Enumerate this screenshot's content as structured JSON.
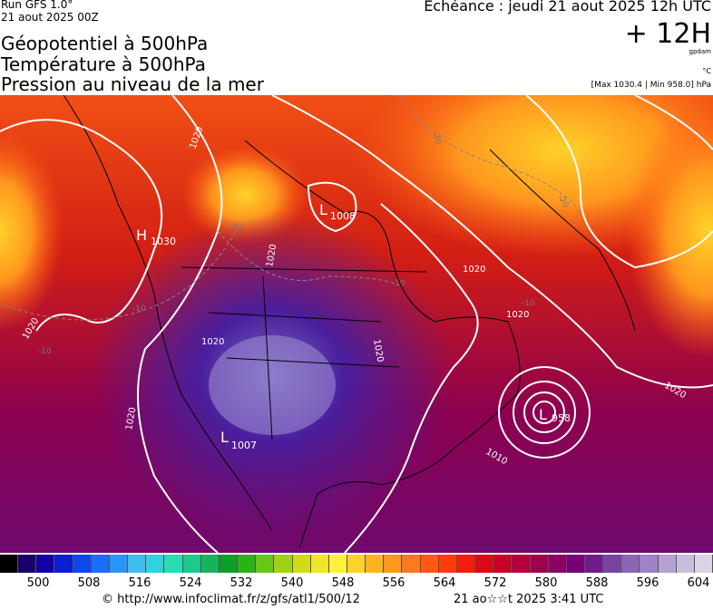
{
  "header": {
    "run": "Run GFS 1.0°",
    "run_date": "21 aout 2025 00Z",
    "titles": [
      "Géopotentiel à 500hPa",
      "Température à 500hPa",
      "Pression au niveau de la mer"
    ],
    "echeance": "Echéance : jeudi 21 aout 2025 12h UTC",
    "offset": "+ 12H",
    "unit_geo": "gpdam",
    "unit_temp": "°C",
    "minmax": "[Max 1030.4 | Min 958.0] hPa"
  },
  "map_labels": {
    "high_1": {
      "letter": "H",
      "value": "1030"
    },
    "low_1": {
      "letter": "L",
      "value": "1008"
    },
    "low_2": {
      "letter": "L",
      "value": "1007"
    },
    "low_3": {
      "letter": "L",
      "value": "958"
    },
    "isobars": [
      "1020",
      "1020",
      "1020",
      "1020",
      "1020",
      "1020",
      "1020",
      "1010",
      "1020",
      "1020"
    ],
    "isotherms": [
      "-20",
      "-20",
      "-20",
      "-10",
      "-10",
      "-10",
      "-10"
    ]
  },
  "scale": {
    "ticks": [
      "500",
      "508",
      "516",
      "524",
      "532",
      "540",
      "548",
      "556",
      "564",
      "572",
      "580",
      "588",
      "596",
      "604"
    ],
    "colors": [
      "#000000",
      "#1a006b",
      "#1200a5",
      "#0a1ed2",
      "#0f46f0",
      "#1a6eff",
      "#2896ff",
      "#3cbef0",
      "#32d2dc",
      "#28dcb4",
      "#1ec88c",
      "#14b45a",
      "#0aa028",
      "#28b414",
      "#64c814",
      "#a0d214",
      "#d2dc14",
      "#f0e628",
      "#fff03c",
      "#ffd228",
      "#ffb41e",
      "#ff961e",
      "#ff781e",
      "#ff5a14",
      "#ff3c0a",
      "#f01e0a",
      "#dc0a14",
      "#c80028",
      "#b4003c",
      "#a00050",
      "#8c0064",
      "#780078",
      "#6e1e8c",
      "#7846a0",
      "#8c64b4",
      "#a082c8",
      "#b4a0d2",
      "#c8bedc",
      "#dcd2e6"
    ]
  },
  "footer": {
    "url": "© http://www.infoclimat.fr/z/gfs/atl1/500/12",
    "date": "21 ao☆☆t 2025  3:41 UTC"
  }
}
